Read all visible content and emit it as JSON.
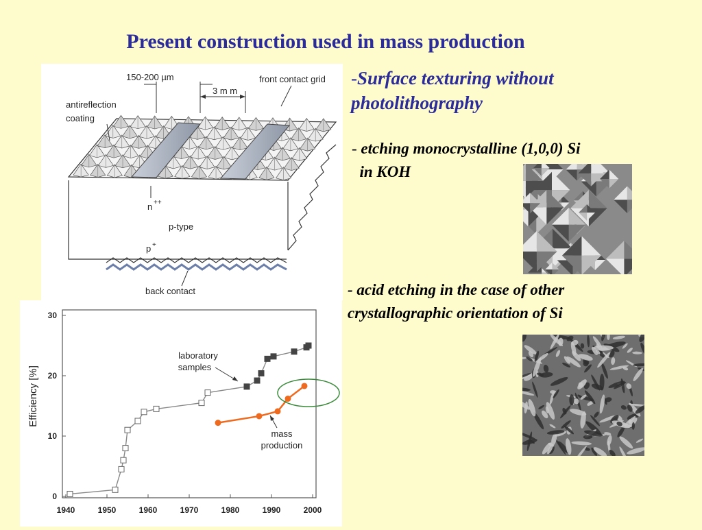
{
  "slide": {
    "title": "Present construction used in mass production",
    "bullet1_dash": "-",
    "bullet1": "Surface texturing without photolithography",
    "bullet2_dash": "-",
    "bullet2_line1": "etching monocrystalline (1,0,0) Si",
    "bullet2_line2": "in KOH",
    "bullet3_dash": "-",
    "bullet3_line1": "acid etching in the case of other",
    "bullet3_line2": "crystallographic orientation of Si"
  },
  "diagram": {
    "dim_top": "150-200 µm",
    "dim_spacing": "3 m m",
    "label_grid": "front contact grid",
    "label_arc1": "antireflection",
    "label_arc2": "coating",
    "label_n": "n",
    "label_n_sup": "++",
    "label_p_type": "p-type",
    "label_p": "p",
    "label_p_sup": "+",
    "label_back": "back contact"
  },
  "chart_data": {
    "type": "line",
    "ylabel": "Efficiency  [%]",
    "xlim": [
      1940,
      2000
    ],
    "ylim": [
      0,
      30
    ],
    "x_ticks": [
      "1940",
      "1950",
      "1960",
      "1970",
      "1980",
      "1990",
      "2000"
    ],
    "y_ticks": [
      "0",
      "10",
      "20",
      "30"
    ],
    "annotations": {
      "lab_line1": "laboratory",
      "lab_line2": "samples",
      "mass_line1": "mass",
      "mass_line2": "production"
    },
    "series": [
      {
        "name": "laboratory samples",
        "color": "#888888",
        "points": [
          [
            1941,
            0.4
          ],
          [
            1952,
            1.1
          ],
          [
            1953.5,
            4.5
          ],
          [
            1954,
            6
          ],
          [
            1954.5,
            8
          ],
          [
            1955,
            11
          ],
          [
            1957.5,
            12.5
          ],
          [
            1959,
            14
          ],
          [
            1962,
            14.5
          ],
          [
            1973,
            15.5
          ],
          [
            1974.5,
            17.2
          ],
          [
            1984,
            18.2
          ],
          [
            1986.5,
            19.2
          ],
          [
            1987.5,
            20.4
          ],
          [
            1989,
            22.8
          ],
          [
            1990.5,
            23.2
          ],
          [
            1995.5,
            24
          ],
          [
            1998.5,
            24.7
          ],
          [
            1999,
            25
          ]
        ]
      },
      {
        "name": "mass production",
        "color": "#ee6a1f",
        "points": [
          [
            1977,
            12.2
          ],
          [
            1987,
            13.3
          ],
          [
            1991.5,
            14.1
          ],
          [
            1994,
            16.2
          ],
          [
            1998,
            18.3
          ]
        ]
      }
    ]
  },
  "images": {
    "koh_texture": "koh-etched-pyramids-micrograph",
    "acid_texture": "acid-etched-surface-micrograph"
  }
}
